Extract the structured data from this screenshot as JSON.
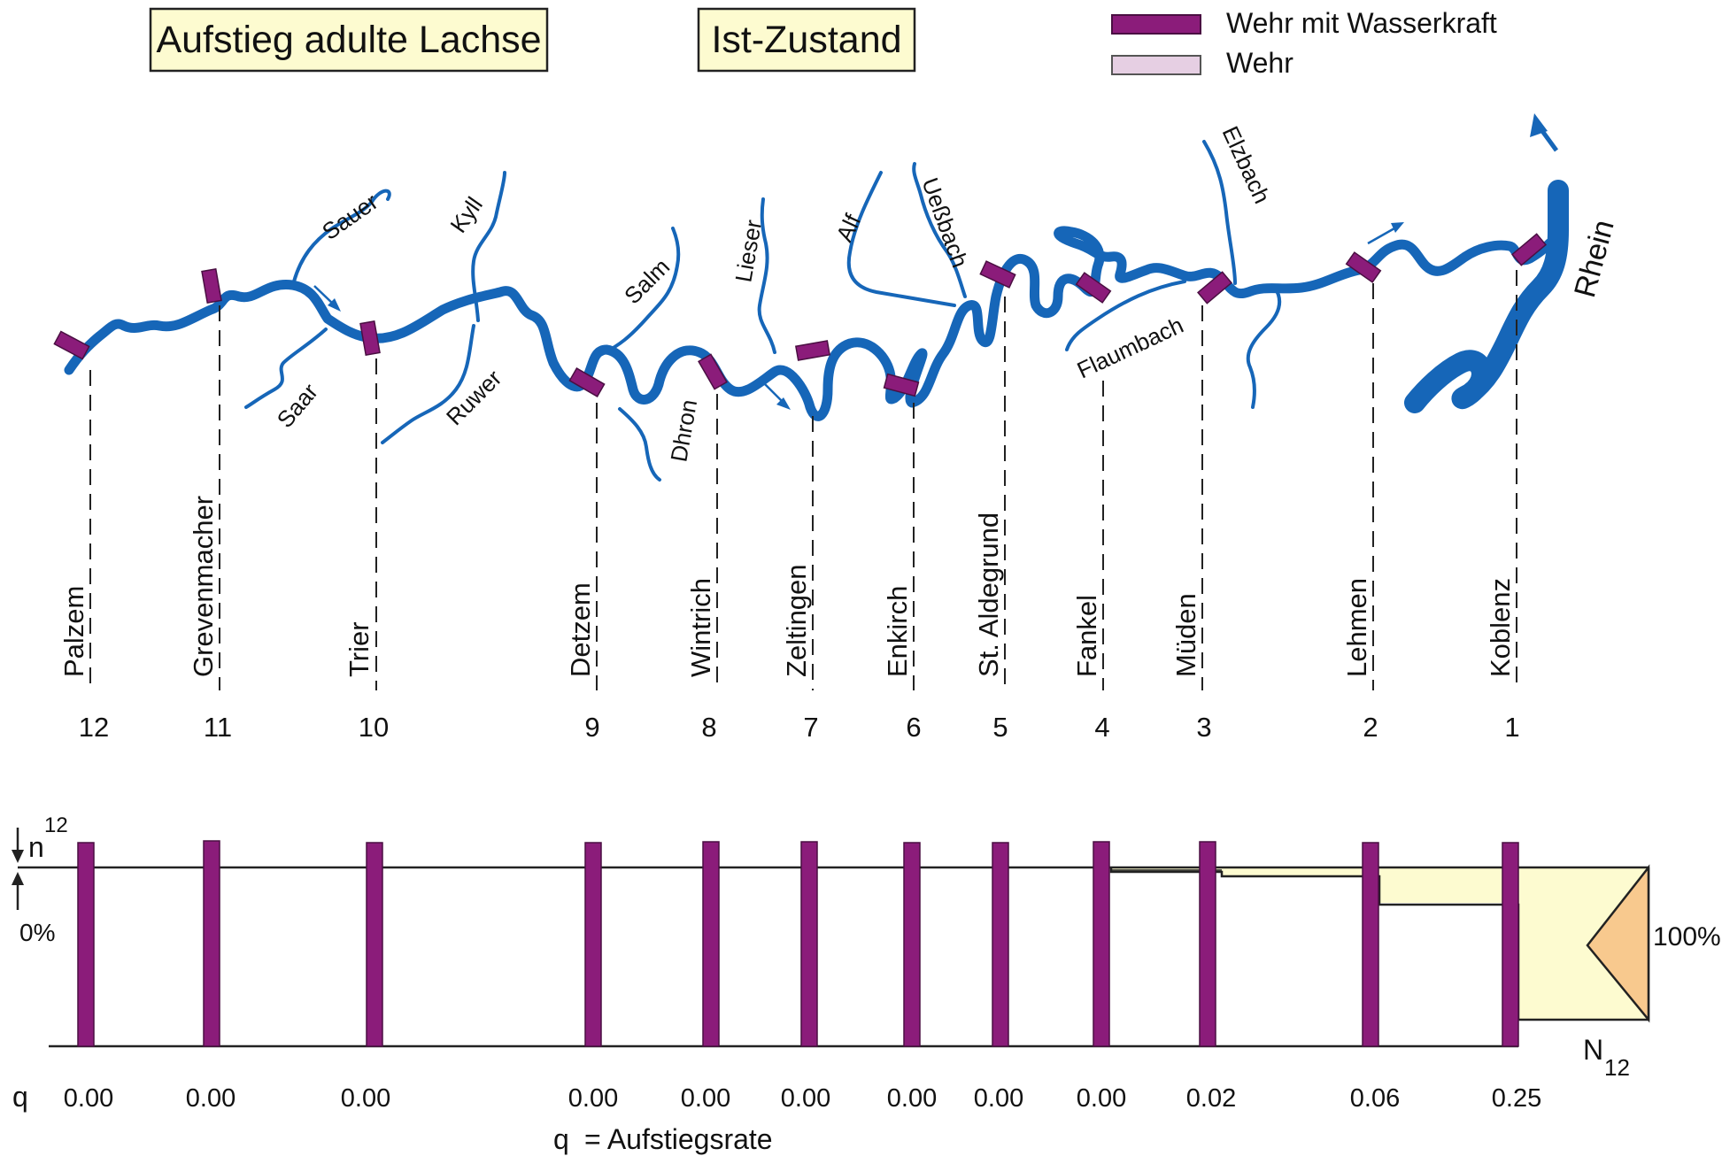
{
  "titles": {
    "left": "Aufstieg adulte Lachse",
    "right": "Ist-Zustand"
  },
  "legend": [
    {
      "label": "Wehr mit Wasserkraft",
      "color": "#8b1c7a"
    },
    {
      "label": "Wehr",
      "color": "#e6cfe3"
    }
  ],
  "rivers": {
    "rhein": "Rhein",
    "tributaries": [
      "Sauer",
      "Saar",
      "Kyll",
      "Ruwer",
      "Salm",
      "Dhron",
      "Lieser",
      "Alf",
      "Ueßbach",
      "Flaumbach",
      "Elzbach"
    ]
  },
  "stations": [
    {
      "number": "12",
      "name": "Palzem",
      "q": "0.00"
    },
    {
      "number": "11",
      "name": "Grevenmacher",
      "q": "0.00"
    },
    {
      "number": "10",
      "name": "Trier",
      "q": "0.00"
    },
    {
      "number": "9",
      "name": "Detzem",
      "q": "0.00"
    },
    {
      "number": "8",
      "name": "Wintrich",
      "q": "0.00"
    },
    {
      "number": "7",
      "name": "Zeltingen",
      "q": "0.00"
    },
    {
      "number": "6",
      "name": "Enkirch",
      "q": "0.00"
    },
    {
      "number": "5",
      "name": "St. Aldegrund",
      "q": "0.00"
    },
    {
      "number": "4",
      "name": "Fankel",
      "q": "0.00"
    },
    {
      "number": "3",
      "name": "Müden",
      "q": "0.02"
    },
    {
      "number": "2",
      "name": "Lehmen",
      "q": "0.06"
    },
    {
      "number": "1",
      "name": "Koblenz",
      "q": "0.25"
    }
  ],
  "chart": {
    "n_label": "n",
    "n_sup": "12",
    "zero_label": "0%",
    "full_label": "100%",
    "N_label": "N",
    "N_sub": "12",
    "q_symbol": "q",
    "q_legend_symbol": "q",
    "q_legend_text": "= Aufstiegsrate"
  }
}
